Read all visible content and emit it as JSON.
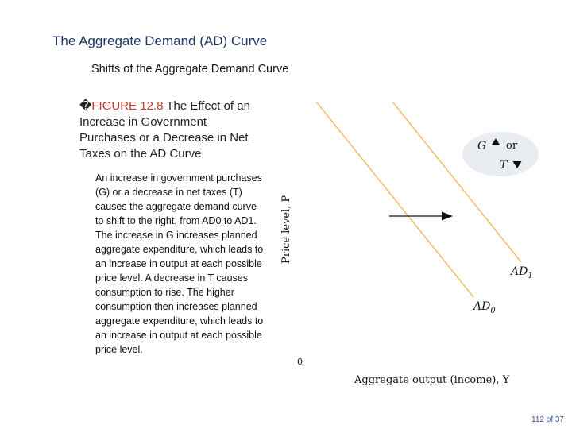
{
  "slide": {
    "title": "The Aggregate Demand (AD) Curve",
    "subtitle": "Shifts of the Aggregate Demand Curve",
    "page_number": "112 of 37"
  },
  "figure": {
    "bullet": "�",
    "label": "FIGURE 12.8",
    "heading": "The Effect of an Increase in Government Purchases or a Decrease in Net Taxes on the AD Curve",
    "caption": "An increase in government purchases (G) or a decrease in net taxes (T) causes the aggregate demand curve to shift to the right, from AD0 to AD1. The increase in G increases planned aggregate expenditure, which leads to an increase in output at each possible price level. A decrease in T causes consumption to rise. The higher consumption then increases planned aggregate expenditure, which leads to an increase in output at each possible price level."
  },
  "diagram": {
    "y_axis_label": "Price level, P",
    "x_axis_label": "Aggregate output (income), Y",
    "origin_label": "0",
    "curve_ad1_label": "AD",
    "curve_ad1_sub": "1",
    "curve_ad0_label": "AD",
    "curve_ad0_sub": "0",
    "box_g": "G",
    "box_or": "or",
    "box_t": "T",
    "curve_color": "#f0c070",
    "oval_color": "#e9ecf1"
  }
}
